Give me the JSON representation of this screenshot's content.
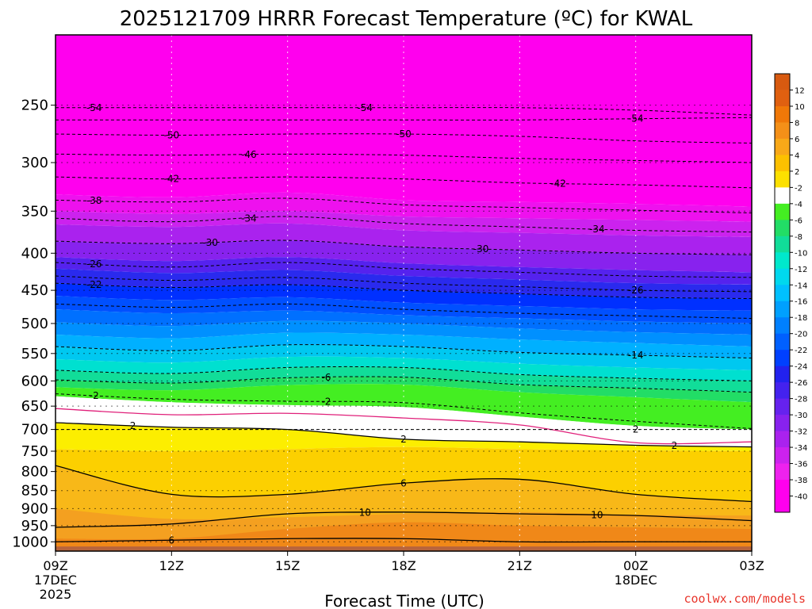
{
  "chart_data": {
    "type": "contour",
    "title": "2025121709 HRRR Forecast Temperature (ºC) for KWAL",
    "xlabel": "Forecast Time (UTC)",
    "ylabel": "",
    "x_range": [
      "2025-12-17T09:00Z",
      "2025-12-18T03:00Z"
    ],
    "y_range_hpa": [
      1030,
      200
    ],
    "y_scale": "log",
    "grid": "dotted",
    "legend": "colorbar-right",
    "x_ticks": [
      {
        "hours": 0,
        "label": "09Z",
        "sub1": "17DEC",
        "sub2": "2025"
      },
      {
        "hours": 3,
        "label": "12Z",
        "sub1": "",
        "sub2": ""
      },
      {
        "hours": 6,
        "label": "15Z",
        "sub1": "",
        "sub2": ""
      },
      {
        "hours": 9,
        "label": "18Z",
        "sub1": "",
        "sub2": ""
      },
      {
        "hours": 12,
        "label": "21Z",
        "sub1": "",
        "sub2": ""
      },
      {
        "hours": 15,
        "label": "00Z",
        "sub1": "18DEC",
        "sub2": ""
      },
      {
        "hours": 18,
        "label": "03Z",
        "sub1": "",
        "sub2": ""
      }
    ],
    "y_ticks": [
      {
        "value": 250,
        "label": "250"
      },
      {
        "value": 300,
        "label": "300"
      },
      {
        "value": 350,
        "label": "350"
      },
      {
        "value": 400,
        "label": "400"
      },
      {
        "value": 450,
        "label": "450"
      },
      {
        "value": 500,
        "label": "500"
      },
      {
        "value": 550,
        "label": "550"
      },
      {
        "value": 600,
        "label": "600"
      },
      {
        "value": 650,
        "label": "650"
      },
      {
        "value": 700,
        "label": "700"
      },
      {
        "value": 750,
        "label": "750"
      },
      {
        "value": 800,
        "label": "800"
      },
      {
        "value": 850,
        "label": "850"
      },
      {
        "value": 900,
        "label": "900"
      },
      {
        "value": 950,
        "label": "950"
      },
      {
        "value": 1000,
        "label": "1000"
      }
    ],
    "colorbar": {
      "labels": [
        "12",
        "10",
        "8",
        "6",
        "4",
        "2",
        "-2",
        "-4",
        "-6",
        "-8",
        "-10",
        "-12",
        "-14",
        "-16",
        "-18",
        "-20",
        "-22",
        "-24",
        "-26",
        "-28",
        "-30",
        "-32",
        "-34",
        "-36",
        "-38",
        "-40"
      ],
      "colors": [
        "#e06010",
        "#f07808",
        "#f49018",
        "#f8a818",
        "#fcc000",
        "#fce000",
        "#ffffff",
        "#44ee22",
        "#22dd66",
        "#11dd99",
        "#00e8cc",
        "#00d8ee",
        "#00c0ff",
        "#00a0ff",
        "#0080ff",
        "#0060ff",
        "#0040ff",
        "#2222ee",
        "#4422ee",
        "#6622ee",
        "#8822ee",
        "#aa22ee",
        "#cc22ee",
        "#ee22ee",
        "#ff00ee"
      ]
    },
    "fill_bands": [
      {
        "top": [
          200,
          200,
          200,
          200,
          200,
          200,
          200
        ],
        "bottom": [
          332,
          335,
          330,
          338,
          340,
          342,
          345
        ],
        "color": "#ff00ee"
      },
      {
        "top": [
          332,
          335,
          330,
          338,
          340,
          342,
          345
        ],
        "bottom": [
          350,
          353,
          350,
          356,
          358,
          360,
          362
        ],
        "color": "#ee11ee"
      },
      {
        "top": [
          350,
          353,
          350,
          356,
          358,
          360,
          362
        ],
        "bottom": [
          365,
          368,
          364,
          372,
          375,
          378,
          380
        ],
        "color": "#cc22ee"
      },
      {
        "top": [
          365,
          368,
          364,
          372,
          375,
          378,
          380
        ],
        "bottom": [
          385,
          388,
          384,
          392,
          396,
          400,
          402
        ],
        "color": "#aa22ee"
      },
      {
        "top": [
          385,
          388,
          384,
          392,
          396,
          400,
          402
        ],
        "bottom": [
          405,
          410,
          405,
          413,
          418,
          422,
          425
        ],
        "color": "#8822ee"
      },
      {
        "top": [
          405,
          410,
          405,
          413,
          418,
          422,
          425
        ],
        "bottom": [
          420,
          426,
          422,
          430,
          435,
          440,
          442
        ],
        "color": "#5522ee"
      },
      {
        "top": [
          420,
          426,
          422,
          430,
          435,
          440,
          442
        ],
        "bottom": [
          440,
          446,
          442,
          450,
          455,
          460,
          462
        ],
        "color": "#2a2aee"
      },
      {
        "top": [
          440,
          446,
          442,
          450,
          455,
          460,
          462
        ],
        "bottom": [
          458,
          464,
          460,
          468,
          473,
          478,
          480
        ],
        "color": "#0030ff"
      },
      {
        "top": [
          458,
          464,
          460,
          468,
          473,
          478,
          480
        ],
        "bottom": [
          478,
          484,
          480,
          487,
          492,
          497,
          500
        ],
        "color": "#0050ff"
      },
      {
        "top": [
          478,
          484,
          480,
          487,
          492,
          497,
          500
        ],
        "bottom": [
          498,
          504,
          496,
          500,
          508,
          514,
          518
        ],
        "color": "#0070ff"
      },
      {
        "top": [
          498,
          504,
          496,
          500,
          508,
          514,
          518
        ],
        "bottom": [
          518,
          524,
          515,
          518,
          526,
          532,
          538
        ],
        "color": "#0090ff"
      },
      {
        "top": [
          518,
          524,
          515,
          518,
          526,
          532,
          538
        ],
        "bottom": [
          538,
          545,
          535,
          538,
          548,
          553,
          558
        ],
        "color": "#00b0ff"
      },
      {
        "top": [
          538,
          545,
          535,
          538,
          548,
          553,
          558
        ],
        "bottom": [
          560,
          566,
          556,
          558,
          568,
          575,
          580
        ],
        "color": "#00c8f0"
      },
      {
        "top": [
          560,
          566,
          556,
          558,
          568,
          575,
          580
        ],
        "bottom": [
          580,
          586,
          575,
          575,
          588,
          595,
          600
        ],
        "color": "#00e0d0"
      },
      {
        "top": [
          580,
          586,
          575,
          575,
          588,
          595,
          600
        ],
        "bottom": [
          598,
          604,
          594,
          593,
          607,
          614,
          622
        ],
        "color": "#11dd99"
      },
      {
        "top": [
          598,
          604,
          594,
          593,
          607,
          614,
          622
        ],
        "bottom": [
          612,
          618,
          608,
          607,
          622,
          632,
          642
        ],
        "color": "#22dd66"
      },
      {
        "top": [
          612,
          618,
          608,
          607,
          622,
          632,
          642
        ],
        "bottom": [
          630,
          642,
          648,
          652,
          672,
          692,
          700
        ],
        "color": "#44ee22"
      },
      {
        "top": [
          630,
          642,
          648,
          652,
          672,
          692,
          700
        ],
        "bottom": [
          685,
          695,
          700,
          722,
          728,
          736,
          740
        ],
        "color": "#ffffff"
      },
      {
        "top": [
          685,
          695,
          700,
          722,
          728,
          736,
          740
        ],
        "bottom": [
          745,
          750,
          745,
          740,
          745,
          748,
          750
        ],
        "color": "#fcee00"
      },
      {
        "top": [
          745,
          750,
          745,
          740,
          745,
          748,
          750
        ],
        "bottom": [
          785,
          860,
          860,
          830,
          820,
          860,
          880
        ],
        "color": "#fcd000"
      },
      {
        "top": [
          785,
          860,
          860,
          830,
          820,
          860,
          880
        ],
        "bottom": [
          1030,
          1030,
          1030,
          1030,
          1030,
          1030,
          1030
        ],
        "color": "#f8b818"
      },
      {
        "top": [
          900,
          930,
          925,
          915,
          910,
          918,
          920
        ],
        "bottom": [
          1030,
          1030,
          1030,
          1030,
          1030,
          1030,
          1030
        ],
        "color": "#f4a020"
      },
      {
        "top": [
          990,
          990,
          960,
          940,
          950,
          955,
          960
        ],
        "bottom": [
          1030,
          1030,
          1030,
          1030,
          1030,
          1030,
          1030
        ],
        "color": "#f08818"
      }
    ],
    "ground": {
      "top_hpa": 1015,
      "color": "#b8643c"
    },
    "contours": [
      {
        "value": -54,
        "p": [
          252,
          252,
          252,
          252,
          252,
          254,
          258
        ],
        "dash": true,
        "labels": [
          {
            "hours": 1,
            "text": "-54"
          },
          {
            "hours": 8,
            "text": "-54"
          }
        ]
      },
      {
        "value": -54,
        "p": [
          262,
          262,
          262,
          262,
          262,
          261,
          260
        ],
        "dash": true,
        "labels": [
          {
            "hours": 15,
            "text": "-54"
          }
        ]
      },
      {
        "value": -50,
        "p": [
          274,
          275,
          274,
          274,
          276,
          280,
          282
        ],
        "dash": true,
        "labels": [
          {
            "hours": 3,
            "text": "-50"
          },
          {
            "hours": 9,
            "text": "-50"
          }
        ]
      },
      {
        "value": -46,
        "p": [
          292,
          293,
          292,
          293,
          296,
          298,
          300
        ],
        "dash": true,
        "labels": [
          {
            "hours": 5,
            "text": "-46"
          }
        ]
      },
      {
        "value": -42,
        "p": [
          314,
          316,
          314,
          316,
          320,
          322,
          325
        ],
        "dash": true,
        "labels": [
          {
            "hours": 3,
            "text": "-42"
          },
          {
            "hours": 13,
            "text": "-42"
          }
        ]
      },
      {
        "value": -38,
        "p": [
          338,
          340,
          336,
          343,
          346,
          349,
          352
        ],
        "dash": true,
        "labels": [
          {
            "hours": 1,
            "text": "-38"
          }
        ]
      },
      {
        "value": -34,
        "p": [
          358,
          362,
          356,
          364,
          368,
          372,
          374
        ],
        "dash": true,
        "labels": [
          {
            "hours": 5,
            "text": "-34"
          },
          {
            "hours": 14,
            "text": "-34"
          }
        ]
      },
      {
        "value": -30,
        "p": [
          385,
          388,
          384,
          392,
          396,
          400,
          402
        ],
        "dash": true,
        "labels": [
          {
            "hours": 4,
            "text": "-30"
          },
          {
            "hours": 11,
            "text": "-30"
          }
        ]
      },
      {
        "value": -26,
        "p": [
          412,
          418,
          412,
          420,
          425,
          430,
          432
        ],
        "dash": true,
        "labels": [
          {
            "hours": 1,
            "text": "-26"
          }
        ]
      },
      {
        "value": -26,
        "p": [
          430,
          436,
          432,
          440,
          445,
          450,
          452
        ],
        "dash": true,
        "labels": [
          {
            "hours": 15,
            "text": "-26"
          }
        ]
      },
      {
        "value": -22,
        "p": [
          440,
          446,
          442,
          450,
          455,
          460,
          462
        ],
        "dash": true,
        "labels": [
          {
            "hours": 1,
            "text": "-22"
          }
        ]
      },
      {
        "value": -18,
        "p": [
          470,
          475,
          470,
          478,
          484,
          488,
          492
        ],
        "dash": true,
        "labels": []
      },
      {
        "value": -14,
        "p": [
          538,
          545,
          535,
          538,
          548,
          553,
          558
        ],
        "dash": true,
        "labels": [
          {
            "hours": 15,
            "text": "-14"
          }
        ]
      },
      {
        "value": -10,
        "p": [
          580,
          586,
          575,
          575,
          588,
          595,
          600
        ],
        "dash": true,
        "labels": []
      },
      {
        "value": -6,
        "p": [
          598,
          604,
          594,
          593,
          607,
          614,
          622
        ],
        "dash": true,
        "labels": [
          {
            "hours": 7,
            "text": "-6"
          }
        ]
      },
      {
        "value": -2,
        "p": [
          625,
          636,
          640,
          643,
          664,
          682,
          698
        ],
        "dash": true,
        "labels": [
          {
            "hours": 1,
            "text": "-2"
          },
          {
            "hours": 7,
            "text": "-2"
          }
        ]
      },
      {
        "value": 0,
        "p": [
          655,
          668,
          665,
          675,
          690,
          730,
          728
        ],
        "dash": false,
        "color": "#e0207a",
        "labels": []
      },
      {
        "value": 2,
        "p": [
          685,
          695,
          700,
          722,
          728,
          736,
          740
        ],
        "dash": false,
        "labels": [
          {
            "hours": 2,
            "text": "2"
          },
          {
            "hours": 9,
            "text": "2"
          },
          {
            "hours": 16,
            "text": "2"
          }
        ]
      },
      {
        "value": 2,
        "p": [
          700,
          700,
          700,
          700,
          700,
          700,
          700
        ],
        "dash": true,
        "labels": [
          {
            "hours": 15,
            "text": "2"
          }
        ]
      },
      {
        "value": 6,
        "p": [
          785,
          860,
          860,
          830,
          820,
          860,
          880
        ],
        "dash": false,
        "labels": [
          {
            "hours": 9,
            "text": "6"
          }
        ]
      },
      {
        "value": 6,
        "p": [
          1000,
          995,
          990,
          990,
          1000,
          1000,
          1000
        ],
        "dash": false,
        "labels": [
          {
            "hours": 3,
            "text": "6"
          }
        ]
      },
      {
        "value": 10,
        "p": [
          955,
          945,
          915,
          910,
          915,
          920,
          935
        ],
        "dash": false,
        "labels": [
          {
            "hours": 8,
            "text": "10"
          },
          {
            "hours": 14,
            "text": "10"
          }
        ]
      }
    ]
  },
  "credit": "coolwx.com/models"
}
